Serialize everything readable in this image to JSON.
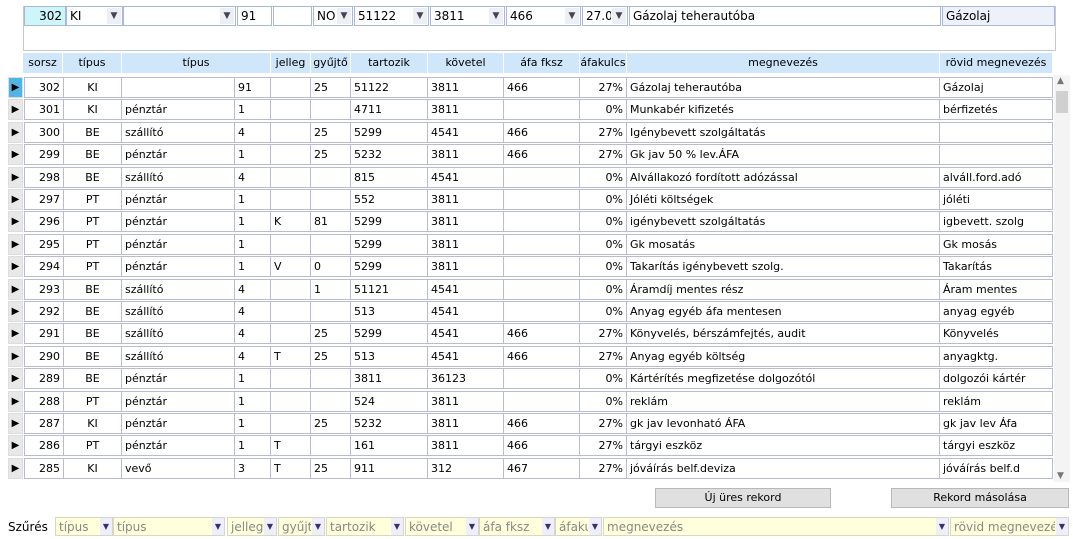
{
  "editor": {
    "sorsz": "302",
    "tipus": "KI",
    "tipus2": "",
    "jelleg_code": "91",
    "extra": "",
    "gyujto": "NO",
    "tartozik": "51122",
    "kovetel": "3811",
    "afa_fksz": "466",
    "afakulcs": "27.0",
    "megnevezes": "Gázolaj teherautóba",
    "rovid": "Gázolaj"
  },
  "headers": [
    "sorsz",
    "típus",
    "típus",
    "jelleg",
    "gyűjtő",
    "tartozik",
    "követel",
    "áfa fksz",
    "áfakulcs",
    "megnevezés",
    "rövid megnevezés"
  ],
  "rows": [
    [
      "302",
      "KI",
      "",
      "91",
      "",
      "25",
      "51122",
      "3811",
      "466",
      "27%",
      "Gázolaj teherautóba",
      "Gázolaj"
    ],
    [
      "301",
      "KI",
      "pénztár",
      "1",
      "",
      "",
      "4711",
      "3811",
      "",
      "0%",
      "Munkabér kifizetés",
      "bérfizetés"
    ],
    [
      "300",
      "BE",
      "szállító",
      "4",
      "",
      "25",
      "5299",
      "4541",
      "466",
      "27%",
      "Igénybevett szolgáltatás",
      ""
    ],
    [
      "299",
      "BE",
      "pénztár",
      "1",
      "",
      "25",
      "5232",
      "3811",
      "466",
      "27%",
      "Gk jav 50 % lev.ÁFA",
      ""
    ],
    [
      "298",
      "BE",
      "szállító",
      "4",
      "",
      "",
      "815",
      "4541",
      "",
      "0%",
      "Alvállakozó fordított adózással",
      "alváll.ford.adó"
    ],
    [
      "297",
      "PT",
      "pénztár",
      "1",
      "",
      "",
      "552",
      "3811",
      "",
      "0%",
      "Jóléti költségek",
      "jóléti"
    ],
    [
      "296",
      "PT",
      "pénztár",
      "1",
      "K",
      "81",
      "5299",
      "3811",
      "",
      "0%",
      "igénybevett szolgáltatás",
      "igbevett. szolg"
    ],
    [
      "295",
      "PT",
      "pénztár",
      "1",
      "",
      "",
      "5299",
      "3811",
      "",
      "0%",
      "Gk mosatás",
      "Gk mosás"
    ],
    [
      "294",
      "PT",
      "pénztár",
      "1",
      "V",
      "0",
      "5299",
      "3811",
      "",
      "0%",
      "Takarítás igénybevett szolg.",
      "Takarítás"
    ],
    [
      "293",
      "BE",
      "szállító",
      "4",
      "",
      "1",
      "51121",
      "4541",
      "",
      "0%",
      "Áramdíj mentes rész",
      "Áram mentes"
    ],
    [
      "292",
      "BE",
      "szállító",
      "4",
      "",
      "",
      "513",
      "4541",
      "",
      "0%",
      "Anyag egyéb áfa mentesen",
      "anyag egyéb"
    ],
    [
      "291",
      "BE",
      "szállító",
      "4",
      "",
      "25",
      "5299",
      "4541",
      "466",
      "27%",
      "Könyvelés, bérszámfejtés, audit",
      "Könyvelés"
    ],
    [
      "290",
      "BE",
      "szállító",
      "4",
      "T",
      "25",
      "513",
      "4541",
      "466",
      "27%",
      "Anyag egyéb költség",
      "anyagktg."
    ],
    [
      "289",
      "BE",
      "pénztár",
      "1",
      "",
      "",
      "3811",
      "36123",
      "",
      "0%",
      "Kártérítés megfizetése dolgozótól",
      "dolgozói kártér"
    ],
    [
      "288",
      "PT",
      "pénztár",
      "1",
      "",
      "",
      "524",
      "3811",
      "",
      "0%",
      "reklám",
      "reklám"
    ],
    [
      "287",
      "KI",
      "pénztár",
      "1",
      "",
      "25",
      "5232",
      "3811",
      "466",
      "27%",
      "gk jav levonható ÁFA",
      "gk jav lev Áfa"
    ],
    [
      "286",
      "PT",
      "pénztár",
      "1",
      "T",
      "",
      "161",
      "3811",
      "466",
      "27%",
      "tárgyi eszköz",
      "tárgyi eszköz"
    ],
    [
      "285",
      "KI",
      "vevő",
      "3",
      "T",
      "25",
      "911",
      "312",
      "467",
      "27%",
      "jóváírás belf.deviza",
      "jóváírás belf.d"
    ]
  ],
  "buttons": {
    "new": "Új üres rekord",
    "copy": "Rekord másolása"
  },
  "filter": {
    "label": "Szűrés",
    "fields": [
      "típus",
      "típus",
      "jelleg",
      "gyűjtő",
      "tartozik",
      "követel",
      "áfa fksz",
      "áfakulcs",
      "megnevezés",
      "rövid megnevezés"
    ]
  },
  "colors": {
    "header": "#cfe6fb",
    "selected_indicator": "#4fb4e6",
    "filter_bg": "#ffffdc"
  }
}
